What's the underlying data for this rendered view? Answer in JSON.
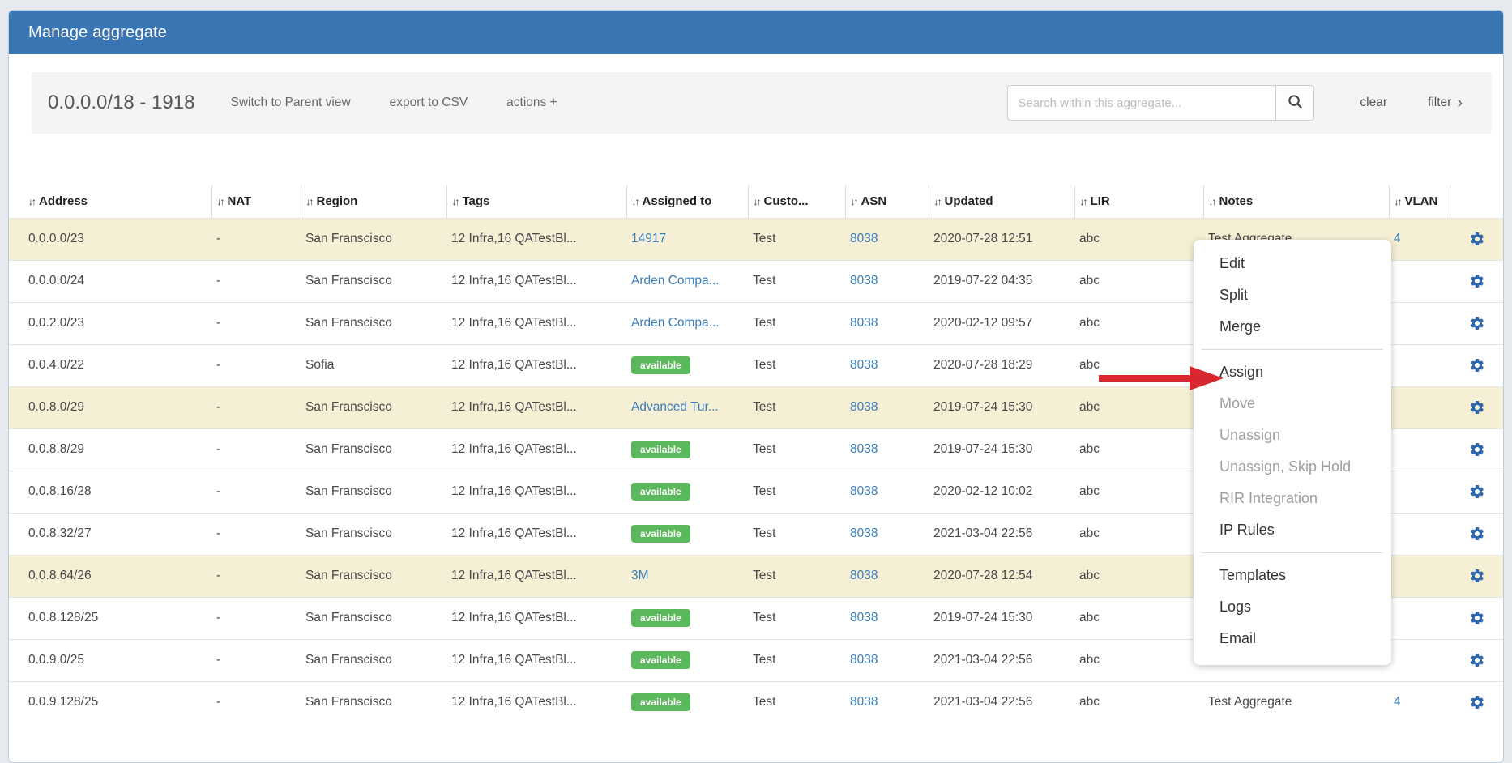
{
  "title_bar": {
    "title": "Manage aggregate"
  },
  "toolbar": {
    "aggregate_label": "0.0.0.0/18 - 1918",
    "switch_parent_label": "Switch to Parent view",
    "export_csv_label": "export to CSV",
    "actions_label": "actions +",
    "search": {
      "placeholder": "Search within this aggregate..."
    },
    "clear_label": "clear",
    "filter_label": "filter",
    "filter_chevron": "›"
  },
  "table": {
    "sort_icon": "↓↑",
    "columns": [
      {
        "key": "address",
        "label": "Address",
        "sortable": true
      },
      {
        "key": "nat",
        "label": "NAT",
        "sortable": true
      },
      {
        "key": "region",
        "label": "Region",
        "sortable": true
      },
      {
        "key": "tags",
        "label": "Tags",
        "sortable": true
      },
      {
        "key": "assigned-to",
        "label": "Assigned to",
        "sortable": true
      },
      {
        "key": "customer",
        "label": "Custo...",
        "sortable": true
      },
      {
        "key": "asn",
        "label": "ASN",
        "sortable": true
      },
      {
        "key": "updated",
        "label": "Updated",
        "sortable": true
      },
      {
        "key": "lir",
        "label": "LIR",
        "sortable": true
      },
      {
        "key": "notes",
        "label": "Notes",
        "sortable": true
      },
      {
        "key": "vlan",
        "label": "VLAN",
        "sortable": true
      },
      {
        "key": "actions",
        "label": "",
        "sortable": false
      }
    ],
    "rows": [
      {
        "address": "0.0.0.0/23",
        "nat": "-",
        "region": "San Franscisco",
        "tags": "12 Infra,16 QATestBl...",
        "assigned": {
          "type": "link",
          "text": "14917"
        },
        "customer": "Test",
        "asn": "8038",
        "updated": "2020-07-28 12:51",
        "lir": "abc",
        "notes": "Test Aggregate",
        "vlan": "4",
        "highlighted": true
      },
      {
        "address": "0.0.0.0/24",
        "nat": "-",
        "region": "San Franscisco",
        "tags": "12 Infra,16 QATestBl...",
        "assigned": {
          "type": "link",
          "text": "Arden Compa..."
        },
        "customer": "Test",
        "asn": "8038",
        "updated": "2019-07-22 04:35",
        "lir": "abc",
        "notes": "",
        "vlan": "",
        "highlighted": false
      },
      {
        "address": "0.0.2.0/23",
        "nat": "-",
        "region": "San Franscisco",
        "tags": "12 Infra,16 QATestBl...",
        "assigned": {
          "type": "link",
          "text": "Arden Compa..."
        },
        "customer": "Test",
        "asn": "8038",
        "updated": "2020-02-12 09:57",
        "lir": "abc",
        "notes": "",
        "vlan": "",
        "highlighted": false
      },
      {
        "address": "0.0.4.0/22",
        "nat": "-",
        "region": "Sofia",
        "tags": "12 Infra,16 QATestBl...",
        "assigned": {
          "type": "badge",
          "text": "available"
        },
        "customer": "Test",
        "asn": "8038",
        "updated": "2020-07-28 18:29",
        "lir": "abc",
        "notes": "",
        "vlan": "",
        "highlighted": false
      },
      {
        "address": "0.0.8.0/29",
        "nat": "-",
        "region": "San Franscisco",
        "tags": "12 Infra,16 QATestBl...",
        "assigned": {
          "type": "link",
          "text": "Advanced Tur..."
        },
        "customer": "Test",
        "asn": "8038",
        "updated": "2019-07-24 15:30",
        "lir": "abc",
        "notes": "",
        "vlan": "",
        "highlighted": true
      },
      {
        "address": "0.0.8.8/29",
        "nat": "-",
        "region": "San Franscisco",
        "tags": "12 Infra,16 QATestBl...",
        "assigned": {
          "type": "badge",
          "text": "available"
        },
        "customer": "Test",
        "asn": "8038",
        "updated": "2019-07-24 15:30",
        "lir": "abc",
        "notes": "",
        "vlan": "",
        "highlighted": false
      },
      {
        "address": "0.0.8.16/28",
        "nat": "-",
        "region": "San Franscisco",
        "tags": "12 Infra,16 QATestBl...",
        "assigned": {
          "type": "badge",
          "text": "available"
        },
        "customer": "Test",
        "asn": "8038",
        "updated": "2020-02-12 10:02",
        "lir": "abc",
        "notes": "",
        "vlan": "",
        "highlighted": false
      },
      {
        "address": "0.0.8.32/27",
        "nat": "-",
        "region": "San Franscisco",
        "tags": "12 Infra,16 QATestBl...",
        "assigned": {
          "type": "badge",
          "text": "available"
        },
        "customer": "Test",
        "asn": "8038",
        "updated": "2021-03-04 22:56",
        "lir": "abc",
        "notes": "",
        "vlan": "",
        "highlighted": false
      },
      {
        "address": "0.0.8.64/26",
        "nat": "-",
        "region": "San Franscisco",
        "tags": "12 Infra,16 QATestBl...",
        "assigned": {
          "type": "link",
          "text": "3M"
        },
        "customer": "Test",
        "asn": "8038",
        "updated": "2020-07-28 12:54",
        "lir": "abc",
        "notes": "",
        "vlan": "",
        "highlighted": true
      },
      {
        "address": "0.0.8.128/25",
        "nat": "-",
        "region": "San Franscisco",
        "tags": "12 Infra,16 QATestBl...",
        "assigned": {
          "type": "badge",
          "text": "available"
        },
        "customer": "Test",
        "asn": "8038",
        "updated": "2019-07-24 15:30",
        "lir": "abc",
        "notes": "",
        "vlan": "",
        "highlighted": false
      },
      {
        "address": "0.0.9.0/25",
        "nat": "-",
        "region": "San Franscisco",
        "tags": "12 Infra,16 QATestBl...",
        "assigned": {
          "type": "badge",
          "text": "available"
        },
        "customer": "Test",
        "asn": "8038",
        "updated": "2021-03-04 22:56",
        "lir": "abc",
        "notes": "",
        "vlan": "",
        "highlighted": false
      },
      {
        "address": "0.0.9.128/25",
        "nat": "-",
        "region": "San Franscisco",
        "tags": "12 Infra,16 QATestBl...",
        "assigned": {
          "type": "badge",
          "text": "available"
        },
        "customer": "Test",
        "asn": "8038",
        "updated": "2021-03-04 22:56",
        "lir": "abc",
        "notes": "Test Aggregate",
        "vlan": "4",
        "highlighted": false
      }
    ]
  },
  "context_menu": {
    "items": [
      {
        "label": "Edit",
        "enabled": true
      },
      {
        "label": "Split",
        "enabled": true
      },
      {
        "label": "Merge",
        "enabled": true
      },
      {
        "divider": true
      },
      {
        "label": "Assign",
        "enabled": true
      },
      {
        "label": "Move",
        "enabled": false
      },
      {
        "label": "Unassign",
        "enabled": false
      },
      {
        "label": "Unassign, Skip Hold",
        "enabled": false
      },
      {
        "label": "RIR Integration",
        "enabled": false
      },
      {
        "label": "IP Rules",
        "enabled": true
      },
      {
        "divider": true
      },
      {
        "label": "Templates",
        "enabled": true
      },
      {
        "label": "Logs",
        "enabled": true
      },
      {
        "label": "Email",
        "enabled": true
      }
    ]
  },
  "annotation": {
    "type": "arrow",
    "points_to": "Assign"
  },
  "colors": {
    "titlebar_blue": "#3b76b4",
    "link_blue": "#3a7cba",
    "badge_green": "#5cb85c",
    "row_highlight_yellow": "#f5efd5",
    "arrow_red": "#d7282f",
    "gear_blue": "#3068ad"
  }
}
